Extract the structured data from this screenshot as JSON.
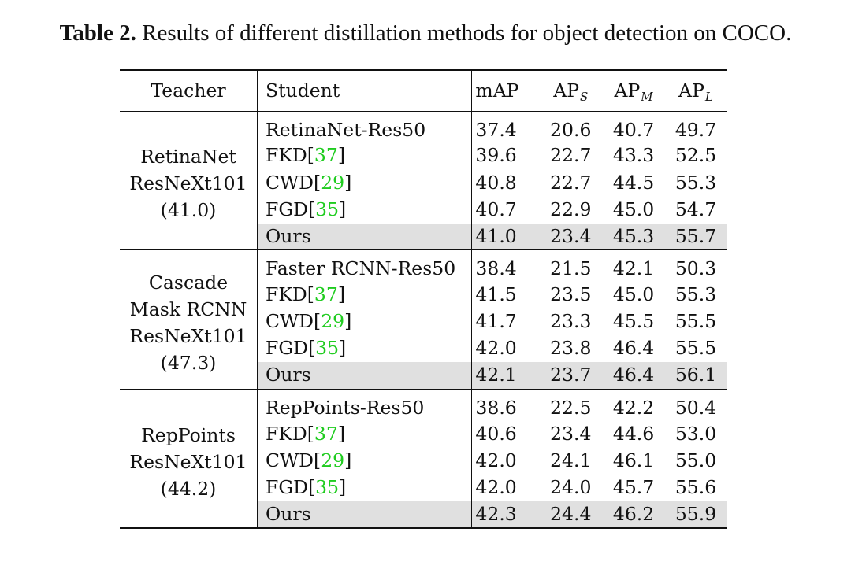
{
  "caption": {
    "label": "Table 2.",
    "text": " Results of different distillation methods for object detection on COCO."
  },
  "header": {
    "teacher": "Teacher",
    "student": "Student",
    "map": "mAP",
    "aps_base": "AP",
    "aps_sub": "S",
    "apm_base": "AP",
    "apm_sub": "M",
    "apl_base": "AP",
    "apl_sub": "L"
  },
  "colors": {
    "citation": "#1fcc1f",
    "highlight_row": "#e0e0e0"
  },
  "groups": [
    {
      "teacher_lines": [
        "RetinaNet",
        "ResNeXt101",
        "(41.0)"
      ],
      "rows": [
        {
          "name": "RetinaNet-Res50",
          "cite": "",
          "values": [
            "37.4",
            "20.6",
            "40.7",
            "49.7"
          ],
          "bold": [
            false,
            false,
            false,
            false
          ]
        },
        {
          "name": "FKD[",
          "cite": "37",
          "values": [
            "39.6",
            "22.7",
            "43.3",
            "52.5"
          ],
          "bold": [
            false,
            false,
            false,
            false
          ]
        },
        {
          "name": "CWD[",
          "cite": "29",
          "values": [
            "40.8",
            "22.7",
            "44.5",
            "55.3"
          ],
          "bold": [
            false,
            false,
            false,
            false
          ]
        },
        {
          "name": "FGD[",
          "cite": "35",
          "values": [
            "40.7",
            "22.9",
            "45.0",
            "54.7"
          ],
          "bold": [
            false,
            false,
            false,
            false
          ]
        },
        {
          "name": "Ours",
          "cite": "",
          "values": [
            "41.0",
            "23.4",
            "45.3",
            "55.7"
          ],
          "bold": [
            true,
            true,
            true,
            true
          ]
        }
      ]
    },
    {
      "teacher_lines": [
        "Cascade",
        "Mask RCNN",
        "ResNeXt101",
        "(47.3)"
      ],
      "rows": [
        {
          "name": "Faster RCNN-Res50",
          "cite": "",
          "values": [
            "38.4",
            "21.5",
            "42.1",
            "50.3"
          ],
          "bold": [
            false,
            false,
            false,
            false
          ]
        },
        {
          "name": "FKD[",
          "cite": "37",
          "values": [
            "41.5",
            "23.5",
            "45.0",
            "55.3"
          ],
          "bold": [
            false,
            false,
            false,
            false
          ]
        },
        {
          "name": "CWD[",
          "cite": "29",
          "values": [
            "41.7",
            "23.3",
            "45.5",
            "55.5"
          ],
          "bold": [
            false,
            false,
            false,
            false
          ]
        },
        {
          "name": "FGD[",
          "cite": "35",
          "values": [
            "42.0",
            "23.8",
            "46.4",
            "55.5"
          ],
          "bold": [
            false,
            true,
            false,
            false
          ]
        },
        {
          "name": "Ours",
          "cite": "",
          "values": [
            "42.1",
            "23.7",
            "46.4",
            "56.1"
          ],
          "bold": [
            true,
            false,
            true,
            true
          ]
        }
      ]
    },
    {
      "teacher_lines": [
        "RepPoints",
        "ResNeXt101",
        "(44.2)"
      ],
      "rows": [
        {
          "name": "RepPoints-Res50",
          "cite": "",
          "values": [
            "38.6",
            "22.5",
            "42.2",
            "50.4"
          ],
          "bold": [
            false,
            false,
            false,
            false
          ]
        },
        {
          "name": "FKD[",
          "cite": "37",
          "values": [
            "40.6",
            "23.4",
            "44.6",
            "53.0"
          ],
          "bold": [
            false,
            false,
            false,
            false
          ]
        },
        {
          "name": "CWD[",
          "cite": "29",
          "values": [
            "42.0",
            "24.1",
            "46.1",
            "55.0"
          ],
          "bold": [
            false,
            false,
            false,
            false
          ]
        },
        {
          "name": "FGD[",
          "cite": "35",
          "values": [
            "42.0",
            "24.0",
            "45.7",
            "55.6"
          ],
          "bold": [
            false,
            false,
            false,
            false
          ]
        },
        {
          "name": "Ours",
          "cite": "",
          "values": [
            "42.3",
            "24.4",
            "46.2",
            "55.9"
          ],
          "bold": [
            true,
            true,
            true,
            true
          ]
        }
      ]
    }
  ]
}
